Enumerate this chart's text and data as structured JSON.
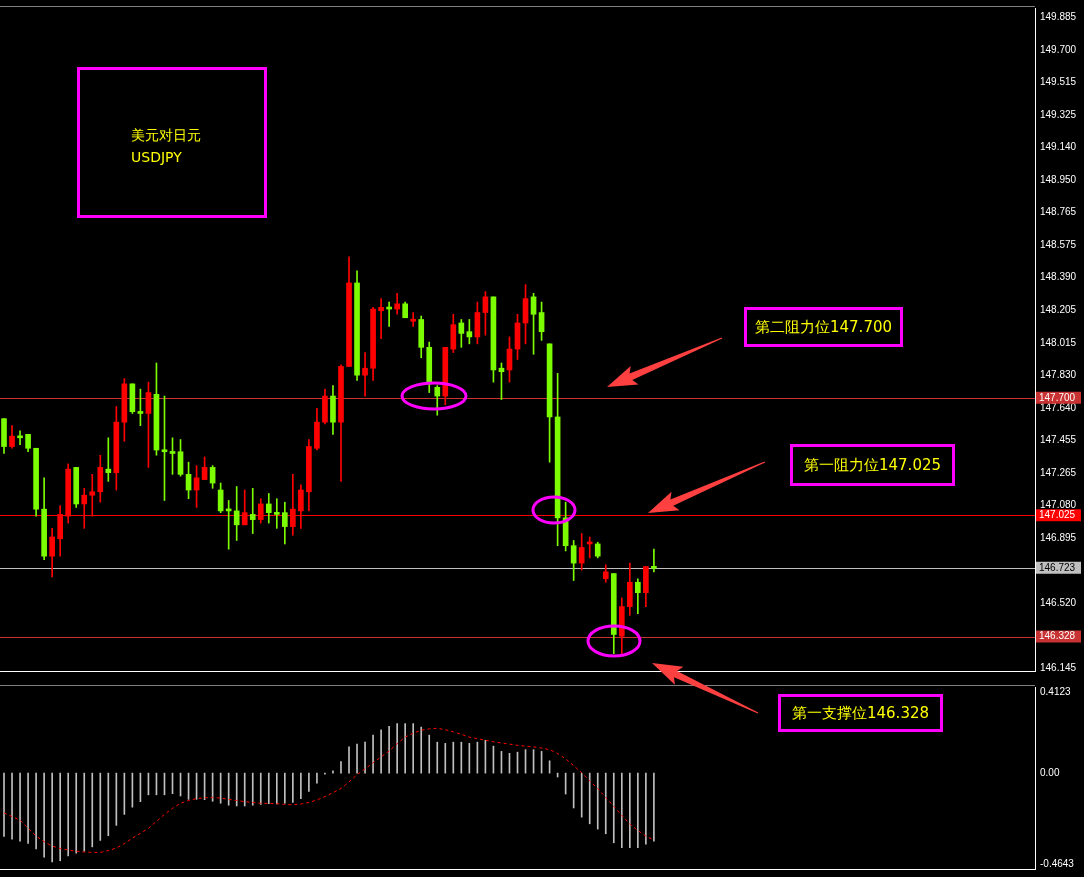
{
  "chart_data": [
    {
      "type": "candlestick",
      "title": "美元对日元",
      "subtitle": "USDJPY",
      "categories": [
        null,
        null,
        null,
        null,
        null,
        null,
        null,
        null,
        null,
        null,
        null,
        null,
        null,
        null,
        null,
        null,
        null,
        null,
        null,
        null,
        null,
        null,
        null,
        null,
        null,
        null,
        null,
        null,
        null,
        null,
        null,
        null,
        null,
        null,
        null,
        null,
        null,
        null,
        null,
        null,
        null,
        null,
        null,
        null,
        null,
        null,
        null,
        null,
        null,
        null,
        null,
        null,
        null,
        null,
        null,
        null,
        null,
        null,
        null,
        null,
        null,
        null,
        null,
        null,
        null,
        null,
        null,
        null,
        null,
        null,
        null,
        null,
        null,
        null,
        null,
        null,
        null,
        null,
        null,
        null,
        null,
        null,
        null,
        null,
        null,
        null,
        null,
        null,
        null,
        null,
        null,
        null,
        null,
        null,
        null,
        null,
        null,
        null,
        null,
        null,
        null,
        null,
        null,
        null,
        null,
        null,
        null,
        null,
        null,
        null,
        null,
        null,
        null,
        null,
        null,
        null,
        null,
        null,
        null,
        null,
        null,
        null,
        null,
        null,
        null,
        null,
        null,
        null,
        null
      ],
      "ohlc": [
        [
          147.58,
          147.58,
          147.38,
          147.42
        ],
        [
          147.42,
          147.54,
          147.41,
          147.48
        ],
        [
          147.48,
          147.51,
          147.43,
          147.47
        ],
        [
          147.49,
          147.49,
          147.39,
          147.41
        ],
        [
          147.41,
          147.41,
          147.02,
          147.06
        ],
        [
          147.06,
          147.24,
          146.77,
          146.79
        ],
        [
          146.79,
          146.95,
          146.67,
          146.9
        ],
        [
          146.89,
          147.08,
          146.79,
          147.03
        ],
        [
          147.02,
          147.32,
          146.98,
          147.29
        ],
        [
          147.3,
          147.3,
          147.07,
          147.09
        ],
        [
          147.09,
          147.18,
          146.95,
          147.14
        ],
        [
          147.14,
          147.26,
          147.02,
          147.16
        ],
        [
          147.16,
          147.37,
          147.1,
          147.3
        ],
        [
          147.29,
          147.47,
          147.22,
          147.27
        ],
        [
          147.27,
          147.65,
          147.17,
          147.56
        ],
        [
          147.56,
          147.81,
          147.45,
          147.78
        ],
        [
          147.78,
          147.78,
          147.61,
          147.62
        ],
        [
          147.62,
          147.75,
          147.54,
          147.61
        ],
        [
          147.61,
          147.79,
          147.3,
          147.73
        ],
        [
          147.72,
          147.9,
          147.37,
          147.4
        ],
        [
          147.4,
          147.71,
          147.11,
          147.39
        ],
        [
          147.39,
          147.47,
          147.26,
          147.38
        ],
        [
          147.39,
          147.46,
          147.25,
          147.26
        ],
        [
          147.26,
          147.33,
          147.12,
          147.17
        ],
        [
          147.17,
          147.31,
          147.07,
          147.24
        ],
        [
          147.23,
          147.36,
          147.23,
          147.3
        ],
        [
          147.3,
          147.31,
          147.18,
          147.21
        ],
        [
          147.17,
          147.21,
          147.04,
          147.05
        ],
        [
          147.06,
          147.11,
          146.83,
          147.05
        ],
        [
          147.05,
          147.19,
          146.88,
          146.97
        ],
        [
          146.97,
          147.17,
          146.97,
          147.04
        ],
        [
          147.03,
          147.18,
          146.92,
          147.0
        ],
        [
          147.0,
          147.12,
          146.98,
          147.09
        ],
        [
          147.09,
          147.15,
          146.98,
          147.04
        ],
        [
          147.04,
          147.12,
          146.95,
          147.03
        ],
        [
          147.04,
          147.1,
          146.86,
          146.96
        ],
        [
          146.96,
          147.26,
          146.91,
          147.06
        ],
        [
          147.05,
          147.2,
          146.95,
          147.17
        ],
        [
          147.16,
          147.46,
          147.05,
          147.42
        ],
        [
          147.41,
          147.64,
          147.4,
          147.56
        ],
        [
          147.56,
          147.75,
          147.55,
          147.71
        ],
        [
          147.71,
          147.77,
          147.49,
          147.56
        ],
        [
          147.56,
          147.89,
          147.22,
          147.88
        ],
        [
          147.88,
          148.51,
          147.88,
          148.36
        ],
        [
          148.36,
          148.43,
          147.8,
          147.83
        ],
        [
          147.83,
          147.96,
          147.71,
          147.87
        ],
        [
          147.87,
          148.22,
          147.8,
          148.21
        ],
        [
          148.2,
          148.27,
          148.04,
          148.22
        ],
        [
          148.22,
          148.25,
          148.11,
          148.21
        ],
        [
          148.21,
          148.3,
          148.18,
          148.24
        ],
        [
          148.24,
          148.25,
          148.16,
          148.16
        ],
        [
          148.14,
          148.19,
          148.11,
          148.15
        ],
        [
          148.15,
          148.17,
          147.93,
          147.99
        ],
        [
          147.99,
          148.02,
          147.73,
          147.78
        ],
        [
          147.76,
          147.77,
          147.6,
          147.71
        ],
        [
          147.71,
          147.99,
          147.66,
          147.99
        ],
        [
          147.98,
          148.18,
          147.96,
          148.12
        ],
        [
          148.13,
          148.15,
          147.99,
          148.07
        ],
        [
          148.08,
          148.15,
          148.01,
          148.05
        ],
        [
          148.05,
          148.25,
          148.01,
          148.19
        ],
        [
          148.19,
          148.31,
          148.06,
          148.28
        ],
        [
          148.28,
          148.28,
          147.79,
          147.86
        ],
        [
          147.87,
          147.9,
          147.69,
          147.85
        ],
        [
          147.86,
          148.05,
          147.79,
          147.98
        ],
        [
          147.98,
          148.18,
          147.92,
          148.13
        ],
        [
          148.13,
          148.35,
          148.01,
          148.27
        ],
        [
          148.28,
          148.3,
          147.95,
          148.18
        ],
        [
          148.19,
          148.25,
          148.03,
          148.08
        ],
        [
          148.01,
          148.01,
          147.33,
          147.59
        ],
        [
          147.59,
          147.84,
          146.85,
          147.01
        ],
        [
          147.01,
          147.1,
          146.82,
          146.85
        ],
        [
          146.85,
          146.88,
          146.65,
          146.75
        ],
        [
          146.75,
          146.92,
          146.71,
          146.84
        ],
        [
          146.86,
          146.9,
          146.78,
          146.87
        ],
        [
          146.86,
          146.87,
          146.78,
          146.79
        ],
        [
          146.66,
          146.74,
          146.64,
          146.7
        ],
        [
          146.69,
          146.69,
          146.23,
          146.34
        ],
        [
          146.33,
          146.55,
          146.22,
          146.5
        ],
        [
          146.5,
          146.75,
          146.45,
          146.64
        ],
        [
          146.64,
          146.66,
          146.46,
          146.58
        ],
        [
          146.58,
          146.73,
          146.5,
          146.73
        ],
        [
          146.73,
          146.83,
          146.7,
          146.72
        ],
        null,
        null,
        null,
        null,
        null,
        null,
        null,
        null,
        null,
        null,
        null,
        null,
        null,
        null,
        null,
        null,
        null,
        null,
        null,
        null,
        null,
        null,
        null,
        null,
        null,
        null,
        null,
        null,
        null,
        null,
        null,
        null,
        null,
        null,
        null,
        null,
        null,
        null,
        null,
        null,
        null,
        null,
        null,
        null,
        null,
        null,
        null
      ],
      "colors": [
        "#7cfc00",
        "#ff0000",
        "#7cfc00",
        "#7cfc00",
        "#7cfc00",
        "#7cfc00",
        "#ff0000",
        "#ff0000",
        "#ff0000",
        "#7cfc00",
        "#ff0000",
        "#ff0000",
        "#ff0000",
        "#7cfc00",
        "#ff0000",
        "#ff0000",
        "#7cfc00",
        "#7cfc00",
        "#ff0000",
        "#7cfc00",
        "#7cfc00",
        "#7cfc00",
        "#7cfc00",
        "#7cfc00",
        "#ff0000",
        "#ff0000",
        "#7cfc00",
        "#7cfc00",
        "#7cfc00",
        "#7cfc00",
        "#ff0000",
        "#7cfc00",
        "#ff0000",
        "#7cfc00",
        "#7cfc00",
        "#7cfc00",
        "#ff0000",
        "#ff0000",
        "#ff0000",
        "#ff0000",
        "#ff0000",
        "#7cfc00",
        "#ff0000",
        "#ff0000",
        "#7cfc00",
        "#ff0000",
        "#ff0000",
        "#ff0000",
        "#7cfc00",
        "#ff0000",
        "#7cfc00",
        "#ff0000",
        "#7cfc00",
        "#7cfc00",
        "#7cfc00",
        "#ff0000",
        "#ff0000",
        "#7cfc00",
        "#7cfc00",
        "#ff0000",
        "#ff0000",
        "#7cfc00",
        "#7cfc00",
        "#ff0000",
        "#ff0000",
        "#ff0000",
        "#7cfc00",
        "#7cfc00",
        "#7cfc00",
        "#7cfc00",
        "#7cfc00",
        "#7cfc00",
        "#ff0000",
        "#ff0000",
        "#7cfc00",
        "#ff0000",
        "#7cfc00",
        "#ff0000",
        "#ff0000",
        "#7cfc00",
        "#ff0000",
        "#7cfc00",
        null,
        null,
        null,
        null,
        null,
        null,
        null,
        null,
        null,
        null,
        null,
        null,
        null,
        null,
        null,
        null,
        null,
        null,
        null,
        null,
        null,
        null,
        null,
        null,
        null,
        null,
        null,
        null,
        null,
        null,
        null,
        null,
        null,
        null,
        null,
        null,
        null,
        null,
        null,
        null,
        null,
        null,
        null,
        null,
        null,
        null,
        null
      ],
      "ylim": [
        146.13,
        149.94
      ],
      "yticks": [
        {
          "value": 149.885,
          "label": "149.885"
        },
        {
          "value": 149.7,
          "label": "149.700"
        },
        {
          "value": 149.515,
          "label": "149.515"
        },
        {
          "value": 149.325,
          "label": "149.325"
        },
        {
          "value": 149.14,
          "label": "149.140"
        },
        {
          "value": 148.95,
          "label": "148.950"
        },
        {
          "value": 148.765,
          "label": "148.765"
        },
        {
          "value": 148.575,
          "label": "148.575"
        },
        {
          "value": 148.39,
          "label": "148.390"
        },
        {
          "value": 148.205,
          "label": "148.205"
        },
        {
          "value": 148.015,
          "label": "148.015"
        },
        {
          "value": 147.83,
          "label": "147.830"
        },
        {
          "value": 147.64,
          "label": "147.640"
        },
        {
          "value": 147.455,
          "label": "147.455"
        },
        {
          "value": 147.265,
          "label": "147.265"
        },
        {
          "value": 147.08,
          "label": "147.080"
        },
        {
          "value": 146.895,
          "label": "146.895"
        },
        {
          "value": 146.52,
          "label": "146.520"
        },
        {
          "value": 146.145,
          "label": "146.145"
        }
      ],
      "ref_lines": [
        {
          "axis": "y",
          "value": 147.7,
          "label": "147.700",
          "color": "#c83232"
        },
        {
          "axis": "y",
          "value": 147.025,
          "label": "147.025",
          "color": "#ff0000"
        },
        {
          "axis": "y",
          "value": 146.723,
          "label": "146.723",
          "color": "#c0c0c0"
        },
        {
          "axis": "y",
          "value": 146.328,
          "label": "146.328",
          "color": "#c83232"
        }
      ],
      "annotations": [
        "第二阻力位147.700",
        "第一阻力位147.025",
        "第一支撑位146.328"
      ],
      "tick_labels": "y"
    },
    {
      "type": "bar",
      "categories": [
        null,
        null,
        null,
        null,
        null,
        null,
        null,
        null,
        null,
        null,
        null,
        null,
        null,
        null,
        null,
        null,
        null,
        null,
        null,
        null,
        null,
        null,
        null,
        null,
        null,
        null,
        null,
        null,
        null,
        null,
        null,
        null,
        null,
        null,
        null,
        null,
        null,
        null,
        null,
        null,
        null,
        null,
        null,
        null,
        null,
        null,
        null,
        null,
        null,
        null,
        null,
        null,
        null,
        null,
        null,
        null,
        null,
        null,
        null,
        null,
        null,
        null,
        null,
        null,
        null,
        null,
        null,
        null,
        null,
        null,
        null,
        null,
        null,
        null,
        null,
        null,
        null,
        null,
        null,
        null,
        null,
        null,
        null,
        null,
        null,
        null,
        null,
        null,
        null,
        null,
        null,
        null,
        null,
        null,
        null,
        null,
        null,
        null,
        null,
        null,
        null,
        null,
        null,
        null,
        null,
        null,
        null,
        null,
        null,
        null,
        null,
        null,
        null,
        null,
        null,
        null,
        null,
        null,
        null,
        null,
        null,
        null,
        null,
        null,
        null,
        null,
        null,
        null,
        null
      ],
      "series": [
        {
          "type": "bar",
          "color": "#c0c0c0",
          "values": [
            -0.324,
            -0.338,
            -0.348,
            -0.359,
            -0.387,
            -0.429,
            -0.454,
            -0.448,
            -0.423,
            -0.409,
            -0.399,
            -0.377,
            -0.344,
            -0.32,
            -0.267,
            -0.211,
            -0.174,
            -0.146,
            -0.111,
            -0.111,
            -0.111,
            -0.105,
            -0.117,
            -0.134,
            -0.134,
            -0.136,
            -0.144,
            -0.154,
            -0.164,
            -0.168,
            -0.168,
            -0.164,
            -0.16,
            -0.156,
            -0.158,
            -0.154,
            -0.15,
            -0.13,
            -0.093,
            -0.051,
            -0.006,
            0.012,
            0.059,
            0.134,
            0.148,
            0.158,
            0.194,
            0.221,
            0.239,
            0.253,
            0.253,
            0.253,
            0.235,
            0.194,
            0.158,
            0.152,
            0.158,
            0.158,
            0.152,
            0.158,
            0.168,
            0.138,
            0.111,
            0.101,
            0.107,
            0.12,
            0.12,
            0.111,
            0.063,
            -0.02,
            -0.107,
            -0.178,
            -0.225,
            -0.259,
            -0.286,
            -0.31,
            -0.356,
            -0.381,
            -0.381,
            -0.381,
            -0.363,
            -0.348,
            null,
            null,
            null,
            null,
            null,
            null,
            null,
            null,
            null,
            null,
            null,
            null,
            null,
            null,
            null,
            null,
            null,
            null,
            null,
            null,
            null,
            null,
            null,
            null,
            null,
            null,
            null,
            null,
            null,
            null,
            null,
            null,
            null,
            null,
            null,
            null,
            null,
            null,
            null,
            null,
            null,
            null,
            null,
            null,
            null,
            null,
            null
          ]
        },
        {
          "type": "line",
          "color": "#ff0000",
          "line_style": "dashed",
          "values": [
            -0.203,
            -0.222,
            -0.241,
            -0.282,
            -0.322,
            -0.35,
            -0.373,
            -0.385,
            -0.393,
            -0.399,
            -0.403,
            -0.405,
            -0.405,
            -0.396,
            -0.383,
            -0.36,
            -0.332,
            -0.308,
            -0.282,
            -0.247,
            -0.211,
            -0.18,
            -0.154,
            -0.14,
            -0.13,
            -0.126,
            -0.124,
            -0.128,
            -0.134,
            -0.14,
            -0.146,
            -0.15,
            -0.154,
            -0.155,
            -0.156,
            -0.16,
            -0.162,
            -0.158,
            -0.15,
            -0.137,
            -0.12,
            -0.1,
            -0.079,
            -0.045,
            -0.008,
            0.022,
            0.053,
            0.083,
            0.113,
            0.15,
            0.184,
            0.204,
            0.219,
            0.226,
            0.229,
            0.222,
            0.211,
            0.198,
            0.184,
            0.176,
            0.168,
            0.16,
            0.154,
            0.148,
            0.142,
            0.138,
            0.134,
            0.128,
            0.12,
            0.1,
            0.073,
            0.038,
            0.002,
            -0.04,
            -0.079,
            -0.125,
            -0.17,
            -0.216,
            -0.261,
            -0.293,
            -0.322,
            -0.342,
            null,
            null,
            null,
            null,
            null,
            null,
            null,
            null,
            null,
            null,
            null,
            null,
            null,
            null,
            null,
            null,
            null,
            null,
            null,
            null,
            null,
            null,
            null,
            null,
            null,
            null,
            null,
            null,
            null,
            null,
            null,
            null,
            null,
            null,
            null,
            null,
            null,
            null,
            null,
            null,
            null,
            null,
            null,
            null,
            null,
            null,
            null
          ]
        }
      ],
      "ylim": [
        -0.49,
        0.44
      ],
      "yticks": [
        0.4123,
        {
          "value": 0,
          "label": "0.00"
        },
        -0.4643
      ],
      "tick_labels": "y"
    }
  ]
}
